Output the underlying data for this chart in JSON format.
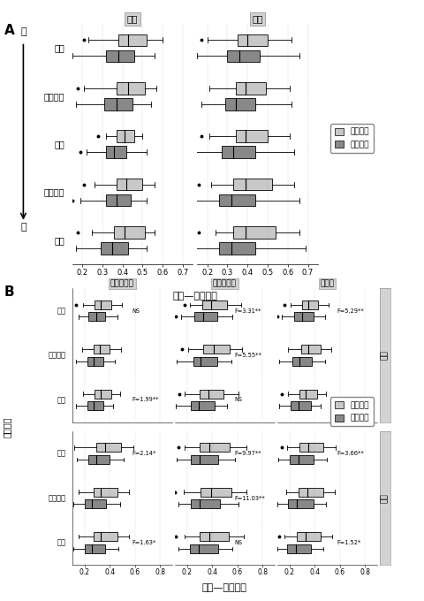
{
  "panel_A": {
    "col_labels": [
      "面茂",
      "唤液"
    ],
    "row_labels": [
      "时间",
      "疾病状态",
      "个体",
      "个体分组",
      "性别"
    ],
    "xlabel": "杰森—香农距离",
    "xlim": [
      0.15,
      0.75
    ],
    "xticks": [
      0.2,
      0.3,
      0.4,
      0.5,
      0.6,
      0.7
    ],
    "between_color": "#c8c8c8",
    "within_color": "#888888",
    "boxes": {
      "面茂": {
        "时间": [
          {
            "q1": 0.38,
            "med": 0.43,
            "q3": 0.52,
            "whislo": 0.23,
            "whishi": 0.6,
            "fliers": [
              0.21
            ]
          },
          {
            "q1": 0.32,
            "med": 0.38,
            "q3": 0.46,
            "whislo": 0.15,
            "whishi": 0.56,
            "fliers": [
              0.12
            ]
          }
        ],
        "疾病状态": [
          {
            "q1": 0.37,
            "med": 0.43,
            "q3": 0.51,
            "whislo": 0.21,
            "whishi": 0.57,
            "fliers": [
              0.18
            ]
          },
          {
            "q1": 0.31,
            "med": 0.37,
            "q3": 0.45,
            "whislo": 0.17,
            "whishi": 0.54,
            "fliers": [
              0.14
            ]
          }
        ],
        "个体": [
          {
            "q1": 0.37,
            "med": 0.41,
            "q3": 0.46,
            "whislo": 0.32,
            "whishi": 0.5,
            "fliers": [
              0.28
            ]
          },
          {
            "q1": 0.32,
            "med": 0.36,
            "q3": 0.42,
            "whislo": 0.22,
            "whishi": 0.52,
            "fliers": [
              0.19
            ]
          }
        ],
        "个体分组": [
          {
            "q1": 0.37,
            "med": 0.42,
            "q3": 0.5,
            "whislo": 0.26,
            "whishi": 0.56,
            "fliers": [
              0.21
            ]
          },
          {
            "q1": 0.32,
            "med": 0.37,
            "q3": 0.44,
            "whislo": 0.19,
            "whishi": 0.52,
            "fliers": [
              0.15
            ]
          }
        ],
        "性别": [
          {
            "q1": 0.36,
            "med": 0.41,
            "q3": 0.51,
            "whislo": 0.25,
            "whishi": 0.56,
            "fliers": [
              0.18
            ]
          },
          {
            "q1": 0.29,
            "med": 0.35,
            "q3": 0.43,
            "whislo": 0.17,
            "whishi": 0.52,
            "fliers": [
              0.14
            ]
          }
        ]
      },
      "唤液": {
        "时间": [
          {
            "q1": 0.35,
            "med": 0.4,
            "q3": 0.5,
            "whislo": 0.2,
            "whishi": 0.62,
            "fliers": [
              0.17
            ]
          },
          {
            "q1": 0.3,
            "med": 0.36,
            "q3": 0.46,
            "whislo": 0.15,
            "whishi": 0.66,
            "fliers": [
              0.12
            ]
          }
        ],
        "疾病状态": [
          {
            "q1": 0.34,
            "med": 0.39,
            "q3": 0.49,
            "whislo": 0.21,
            "whishi": 0.61,
            "fliers": []
          },
          {
            "q1": 0.29,
            "med": 0.34,
            "q3": 0.44,
            "whislo": 0.17,
            "whishi": 0.62,
            "fliers": []
          }
        ],
        "个体": [
          {
            "q1": 0.34,
            "med": 0.39,
            "q3": 0.5,
            "whislo": 0.21,
            "whishi": 0.61,
            "fliers": [
              0.17
            ]
          },
          {
            "q1": 0.27,
            "med": 0.33,
            "q3": 0.44,
            "whislo": 0.14,
            "whishi": 0.63,
            "fliers": [
              0.11
            ]
          }
        ],
        "个体分组": [
          {
            "q1": 0.33,
            "med": 0.39,
            "q3": 0.52,
            "whislo": 0.22,
            "whishi": 0.63,
            "fliers": [
              0.16
            ]
          },
          {
            "q1": 0.26,
            "med": 0.32,
            "q3": 0.44,
            "whislo": 0.13,
            "whishi": 0.66,
            "fliers": [
              0.1
            ]
          }
        ],
        "性别": [
          {
            "q1": 0.33,
            "med": 0.39,
            "q3": 0.54,
            "whislo": 0.24,
            "whishi": 0.66,
            "fliers": [
              0.16
            ]
          },
          {
            "q1": 0.26,
            "med": 0.32,
            "q3": 0.44,
            "whislo": 0.13,
            "whishi": 0.69,
            "fliers": [
              0.1
            ]
          }
        ]
      }
    }
  },
  "panel_B": {
    "col_labels": [
      "鼻和乔制剑",
      "鼻和水平制",
      "健康组"
    ],
    "row_groups": [
      "面茂",
      "唤液"
    ],
    "row_group_labels": [
      "面茂",
      "唤液"
    ],
    "row_labels": [
      "时间",
      "疾病状态",
      "个体"
    ],
    "xlabel": "杰森—香农距离",
    "ylabel": "影响因素",
    "xlim": [
      0.1,
      0.9
    ],
    "xticks": [
      0.2,
      0.4,
      0.6,
      0.8
    ],
    "between_color": "#c8c8c8",
    "within_color": "#888888",
    "annotations": {
      "面茂": {
        "时间": [
          "NS",
          "F=3.31**",
          "F=5.29**"
        ],
        "疾病状态": [
          "",
          "F=5.55**",
          ""
        ],
        "个体": [
          "F=1.99**",
          "NS",
          "NS"
        ]
      },
      "唤液": {
        "时间": [
          "F=2.14*",
          "F=9.97**",
          "F=3.66**"
        ],
        "疾病状态": [
          "",
          "F=11.03**",
          ""
        ],
        "个体": [
          "F=1.63*",
          "NS",
          "F=1.52*"
        ]
      }
    },
    "boxes": {
      "面茂": {
        "时间": {
          "鼻和乔制剑": [
            {
              "q1": 0.28,
              "med": 0.33,
              "q3": 0.41,
              "whislo": 0.19,
              "whishi": 0.5,
              "fliers": [
                0.13
              ]
            },
            {
              "q1": 0.23,
              "med": 0.29,
              "q3": 0.36,
              "whislo": 0.15,
              "whishi": 0.46,
              "fliers": []
            }
          ],
          "鼻和水平制": [
            {
              "q1": 0.32,
              "med": 0.39,
              "q3": 0.52,
              "whislo": 0.22,
              "whishi": 0.63,
              "fliers": [
                0.18
              ]
            },
            {
              "q1": 0.26,
              "med": 0.33,
              "q3": 0.44,
              "whislo": 0.15,
              "whishi": 0.56,
              "fliers": [
                0.11
              ]
            }
          ],
          "健康组": [
            {
              "q1": 0.3,
              "med": 0.35,
              "q3": 0.43,
              "whislo": 0.21,
              "whishi": 0.51,
              "fliers": [
                0.16
              ]
            },
            {
              "q1": 0.24,
              "med": 0.3,
              "q3": 0.39,
              "whislo": 0.14,
              "whishi": 0.48,
              "fliers": [
                0.1
              ]
            }
          ]
        },
        "疾病状态": {
          "鼻和乔制剑": [
            {
              "q1": 0.27,
              "med": 0.32,
              "q3": 0.4,
              "whislo": 0.18,
              "whishi": 0.49,
              "fliers": []
            },
            {
              "q1": 0.22,
              "med": 0.27,
              "q3": 0.35,
              "whislo": 0.13,
              "whishi": 0.44,
              "fliers": []
            }
          ],
          "鼻和水平制": [
            {
              "q1": 0.33,
              "med": 0.41,
              "q3": 0.54,
              "whislo": 0.21,
              "whishi": 0.64,
              "fliers": [
                0.16
              ]
            },
            {
              "q1": 0.25,
              "med": 0.31,
              "q3": 0.44,
              "whislo": 0.12,
              "whishi": 0.55,
              "fliers": [
                0.08
              ]
            }
          ],
          "健康组": [
            {
              "q1": 0.29,
              "med": 0.35,
              "q3": 0.45,
              "whislo": 0.19,
              "whishi": 0.53,
              "fliers": []
            },
            {
              "q1": 0.22,
              "med": 0.28,
              "q3": 0.38,
              "whislo": 0.12,
              "whishi": 0.48,
              "fliers": []
            }
          ]
        },
        "个体": {
          "鼻和乔制剑": [
            {
              "q1": 0.28,
              "med": 0.33,
              "q3": 0.41,
              "whislo": 0.19,
              "whishi": 0.48,
              "fliers": []
            },
            {
              "q1": 0.22,
              "med": 0.27,
              "q3": 0.35,
              "whislo": 0.13,
              "whishi": 0.43,
              "fliers": []
            }
          ],
          "鼻和水平制": [
            {
              "q1": 0.3,
              "med": 0.37,
              "q3": 0.49,
              "whislo": 0.18,
              "whishi": 0.61,
              "fliers": [
                0.14
              ]
            },
            {
              "q1": 0.23,
              "med": 0.29,
              "q3": 0.42,
              "whislo": 0.11,
              "whishi": 0.52,
              "fliers": [
                0.07
              ]
            }
          ],
          "健康组": [
            {
              "q1": 0.28,
              "med": 0.33,
              "q3": 0.42,
              "whislo": 0.19,
              "whishi": 0.49,
              "fliers": [
                0.14
              ]
            },
            {
              "q1": 0.21,
              "med": 0.27,
              "q3": 0.37,
              "whislo": 0.12,
              "whishi": 0.45,
              "fliers": [
                0.07
              ]
            }
          ]
        }
      },
      "唤液": {
        "时间": {
          "鼻和乔制剑": [
            {
              "q1": 0.29,
              "med": 0.36,
              "q3": 0.49,
              "whislo": 0.12,
              "whishi": 0.59,
              "fliers": []
            },
            {
              "q1": 0.23,
              "med": 0.29,
              "q3": 0.4,
              "whislo": 0.14,
              "whishi": 0.51,
              "fliers": []
            }
          ],
          "鼻和水平制": [
            {
              "q1": 0.3,
              "med": 0.38,
              "q3": 0.54,
              "whislo": 0.18,
              "whishi": 0.67,
              "fliers": [
                0.13
              ]
            },
            {
              "q1": 0.23,
              "med": 0.3,
              "q3": 0.45,
              "whislo": 0.12,
              "whishi": 0.58,
              "fliers": [
                0.07
              ]
            }
          ],
          "健康组": [
            {
              "q1": 0.28,
              "med": 0.35,
              "q3": 0.47,
              "whislo": 0.18,
              "whishi": 0.57,
              "fliers": [
                0.14
              ]
            },
            {
              "q1": 0.2,
              "med": 0.27,
              "q3": 0.39,
              "whislo": 0.11,
              "whishi": 0.5,
              "fliers": [
                0.07
              ]
            }
          ]
        },
        "疾病状态": {
          "鼻和乔制剑": [
            {
              "q1": 0.27,
              "med": 0.33,
              "q3": 0.46,
              "whislo": 0.15,
              "whishi": 0.55,
              "fliers": []
            },
            {
              "q1": 0.2,
              "med": 0.26,
              "q3": 0.37,
              "whislo": 0.11,
              "whishi": 0.48,
              "fliers": []
            }
          ],
          "鼻和水平制": [
            {
              "q1": 0.31,
              "med": 0.39,
              "q3": 0.55,
              "whislo": 0.17,
              "whishi": 0.67,
              "fliers": [
                0.1
              ]
            },
            {
              "q1": 0.23,
              "med": 0.3,
              "q3": 0.46,
              "whislo": 0.13,
              "whishi": 0.61,
              "fliers": [
                0.07
              ]
            }
          ],
          "健康组": [
            {
              "q1": 0.27,
              "med": 0.34,
              "q3": 0.47,
              "whislo": 0.17,
              "whishi": 0.56,
              "fliers": []
            },
            {
              "q1": 0.19,
              "med": 0.26,
              "q3": 0.39,
              "whislo": 0.1,
              "whishi": 0.49,
              "fliers": []
            }
          ]
        },
        "个体": {
          "鼻和乔制剑": [
            {
              "q1": 0.27,
              "med": 0.33,
              "q3": 0.46,
              "whislo": 0.15,
              "whishi": 0.55,
              "fliers": []
            },
            {
              "q1": 0.2,
              "med": 0.26,
              "q3": 0.36,
              "whislo": 0.11,
              "whishi": 0.47,
              "fliers": []
            }
          ],
          "鼻和水平制": [
            {
              "q1": 0.3,
              "med": 0.38,
              "q3": 0.53,
              "whislo": 0.18,
              "whishi": 0.65,
              "fliers": [
                0.11
              ]
            },
            {
              "q1": 0.22,
              "med": 0.29,
              "q3": 0.45,
              "whislo": 0.13,
              "whishi": 0.56,
              "fliers": [
                0.07
              ]
            }
          ],
          "健康组": [
            {
              "q1": 0.26,
              "med": 0.33,
              "q3": 0.45,
              "whislo": 0.16,
              "whishi": 0.54,
              "fliers": [
                0.12
              ]
            },
            {
              "q1": 0.18,
              "med": 0.25,
              "q3": 0.37,
              "whislo": 0.1,
              "whishi": 0.47,
              "fliers": []
            }
          ]
        }
      }
    }
  },
  "legend": {
    "between_label": "组间差异",
    "within_label": "组内差异",
    "between_color": "#c8c8c8",
    "within_color": "#888888"
  }
}
